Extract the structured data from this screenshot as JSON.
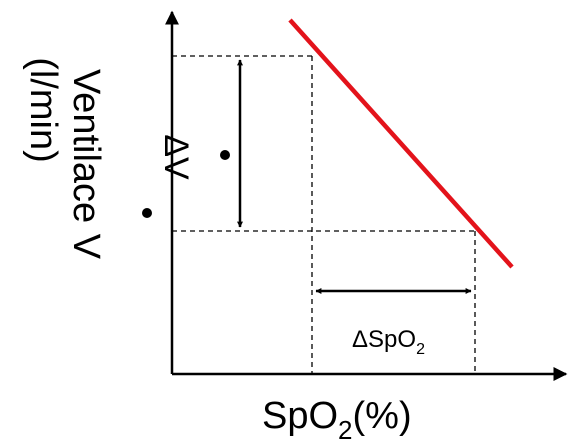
{
  "diagram": {
    "y_axis_label_line1": "Ventilace V",
    "y_axis_label_line2": "(l/min)",
    "x_axis_label_main": "SpO",
    "x_axis_label_sub": "2",
    "x_axis_label_unit": "(%)",
    "delta_v_label": "ΔV",
    "delta_spo2_main": "ΔSpO",
    "delta_spo2_sub": "2",
    "colors": {
      "line": "#e3131b",
      "axis": "#000000",
      "background": "#ffffff"
    }
  }
}
